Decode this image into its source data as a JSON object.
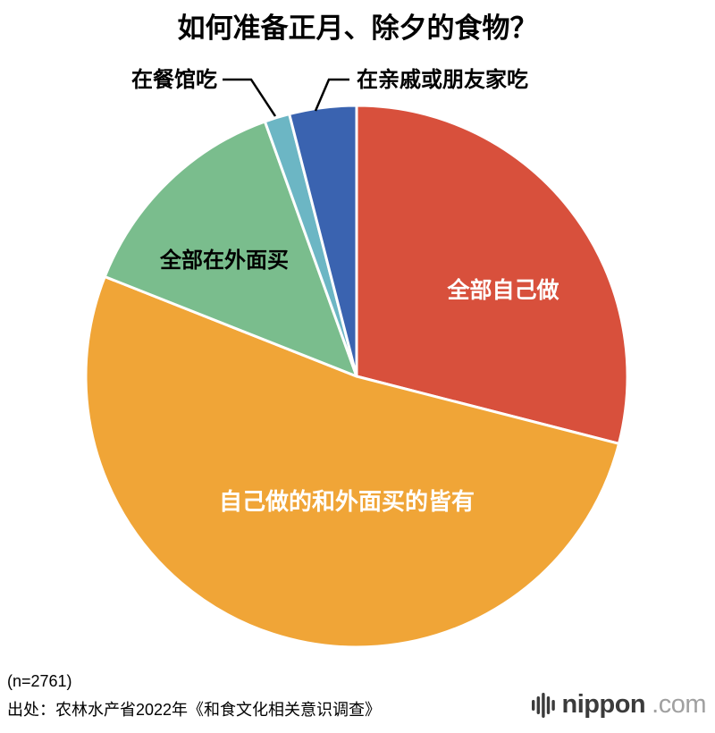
{
  "page": {
    "footer": {
      "n_label": "(n=2761)",
      "source": "出处：农林水产省2022年《和食文化相关意识调查》"
    },
    "branding": {
      "name": "nippon",
      "tld": ".com",
      "icon": "equalizer-bars-icon"
    }
  },
  "chart_data": {
    "type": "pie",
    "title": "如何准备正月、除夕的食物？",
    "sample_size": "n=2761",
    "source": "出处：农林水产省2022年《和食文化相关意识调查》",
    "values_shown_on_chart": false,
    "unit": "percent (estimated from slice angles; chart shows no numeric labels)",
    "start_angle_deg": 0,
    "direction": "clockwise",
    "legend_position": "none",
    "slices": [
      {
        "label": "全部自己做",
        "value": 29,
        "color": "#D8503C",
        "label_placement": "inside",
        "label_color": "#FFFFFF"
      },
      {
        "label": "自己做的和外面买的皆有",
        "value": 52,
        "color": "#F0A537",
        "label_placement": "inside",
        "label_color": "#FFFFFF"
      },
      {
        "label": "全部在外面买",
        "value": 13.5,
        "color": "#7ABD8D",
        "label_placement": "inside",
        "label_color": "#000000"
      },
      {
        "label": "在餐馆吃",
        "value": 1.5,
        "color": "#6CB6C4",
        "label_placement": "callout",
        "label_color": "#000000"
      },
      {
        "label": "在亲戚或朋友家吃",
        "value": 4,
        "color": "#3A63B0",
        "label_placement": "callout",
        "label_color": "#000000"
      }
    ]
  }
}
